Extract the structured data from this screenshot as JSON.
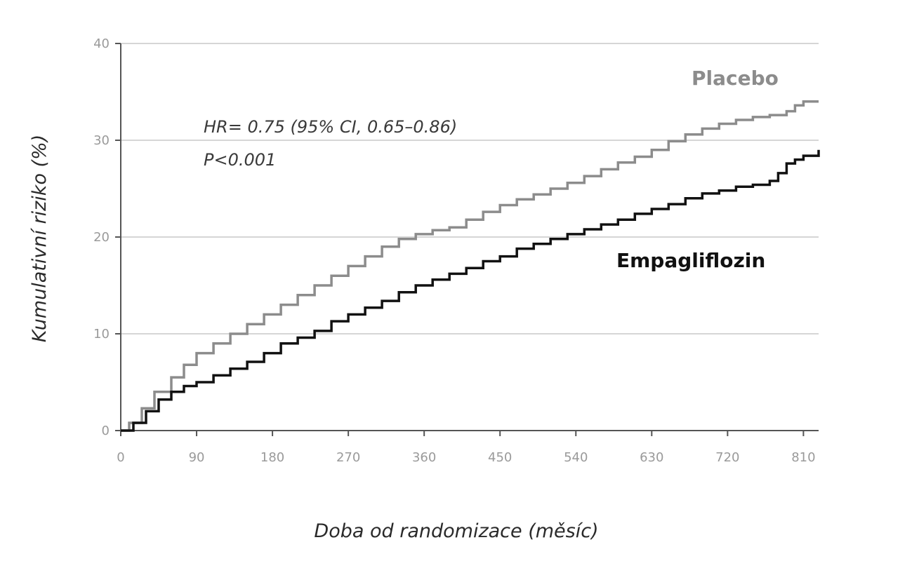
{
  "chart_data": {
    "type": "line",
    "xlabel": "Doba od randomizace (měsíc)",
    "ylabel": "Kumulativní riziko (%)",
    "xlim": [
      0,
      828
    ],
    "ylim": [
      0,
      40
    ],
    "x_ticks": [
      0,
      90,
      180,
      270,
      360,
      450,
      540,
      630,
      720,
      810
    ],
    "x_tick_labels": [
      "0",
      "90",
      "180",
      "270",
      "360",
      "450",
      "540",
      "630",
      "720",
      "810"
    ],
    "y_ticks": [
      0,
      10,
      20,
      30,
      40
    ],
    "y_tick_labels": [
      "0",
      "10",
      "20",
      "30",
      "40"
    ],
    "grid": "horizontal",
    "annotations": [
      {
        "text": "HR= 0.75 (95% CI, 0.65–0.86)"
      },
      {
        "text": "P<0.001"
      }
    ],
    "series": [
      {
        "name": "Placebo",
        "color": "#8c8c8c",
        "x": [
          0,
          10,
          25,
          40,
          60,
          75,
          90,
          110,
          130,
          150,
          170,
          190,
          210,
          230,
          250,
          270,
          290,
          310,
          330,
          350,
          370,
          390,
          410,
          430,
          450,
          470,
          490,
          510,
          530,
          550,
          570,
          590,
          610,
          630,
          650,
          670,
          690,
          710,
          730,
          750,
          770,
          790,
          800,
          810,
          828
        ],
        "y": [
          0,
          0.8,
          2.3,
          4.0,
          5.5,
          6.8,
          8.0,
          9.0,
          10.0,
          11.0,
          12.0,
          13.0,
          14.0,
          15.0,
          16.0,
          17.0,
          18.0,
          19.0,
          19.8,
          20.3,
          20.7,
          21.0,
          21.8,
          22.6,
          23.3,
          23.9,
          24.4,
          25.0,
          25.6,
          26.3,
          27.0,
          27.7,
          28.3,
          29.0,
          29.9,
          30.6,
          31.2,
          31.7,
          32.1,
          32.4,
          32.6,
          33.0,
          33.6,
          34.0,
          34.0
        ]
      },
      {
        "name": "Empagliflozin",
        "color": "#111111",
        "x": [
          0,
          15,
          30,
          45,
          60,
          75,
          90,
          110,
          130,
          150,
          170,
          190,
          210,
          230,
          250,
          270,
          290,
          310,
          330,
          350,
          370,
          390,
          410,
          430,
          450,
          470,
          490,
          510,
          530,
          550,
          570,
          590,
          610,
          630,
          650,
          670,
          690,
          710,
          730,
          750,
          770,
          780,
          790,
          800,
          810,
          828
        ],
        "y": [
          0,
          0.8,
          2.0,
          3.2,
          4.0,
          4.6,
          5.0,
          5.7,
          6.4,
          7.1,
          8.0,
          9.0,
          9.6,
          10.3,
          11.3,
          12.0,
          12.7,
          13.4,
          14.3,
          15.0,
          15.6,
          16.2,
          16.8,
          17.5,
          18.0,
          18.8,
          19.3,
          19.8,
          20.3,
          20.8,
          21.3,
          21.8,
          22.4,
          22.9,
          23.4,
          24.0,
          24.5,
          24.8,
          25.2,
          25.4,
          25.8,
          26.6,
          27.6,
          28.0,
          28.4,
          29.0
        ]
      }
    ]
  }
}
